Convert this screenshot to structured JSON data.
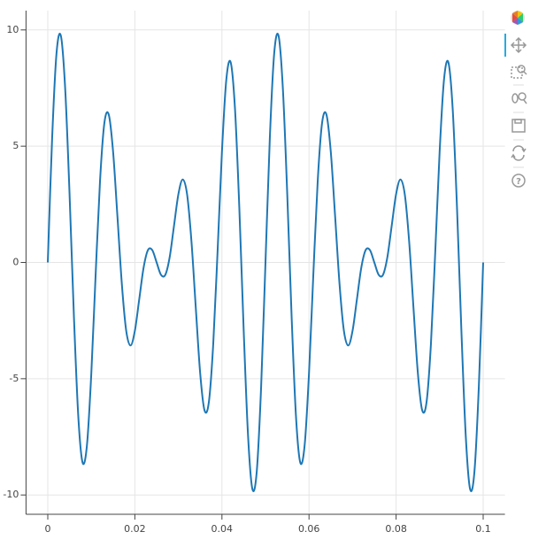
{
  "chart_data": {
    "type": "line",
    "x": [
      0,
      0.001,
      0.002,
      0.003,
      0.004,
      0.005,
      0.006,
      0.007,
      0.008,
      0.009,
      0.01,
      0.011,
      0.012,
      0.013,
      0.014,
      0.015,
      0.016,
      0.017,
      0.018,
      0.019,
      0.02,
      0.021,
      0.022,
      0.023,
      0.024,
      0.025,
      0.026,
      0.027,
      0.028,
      0.029,
      0.03,
      0.031,
      0.032,
      0.033,
      0.034,
      0.035,
      0.036,
      0.037,
      0.038,
      0.039,
      0.04,
      0.041,
      0.042,
      0.043,
      0.044,
      0.045,
      0.046,
      0.047,
      0.048,
      0.049,
      0.05,
      0.051,
      0.052,
      0.053,
      0.054,
      0.055,
      0.056,
      0.057,
      0.058,
      0.059,
      0.06,
      0.061,
      0.062,
      0.063,
      0.064,
      0.065,
      0.066,
      0.067,
      0.068,
      0.069,
      0.07,
      0.071,
      0.072,
      0.073,
      0.074,
      0.075,
      0.076,
      0.077,
      0.078,
      0.079,
      0.08,
      0.081,
      0.082,
      0.083,
      0.084,
      0.085,
      0.086,
      0.087,
      0.088,
      0.089,
      0.09,
      0.091,
      0.092,
      0.093,
      0.094,
      0.095,
      0.096,
      0.097,
      0.098,
      0.099,
      0.1
    ],
    "series": [
      {
        "color": "#1f77b4",
        "values": [
          0,
          5.35,
          8.98,
          9.75,
          7.46,
          2.94,
          -2.31,
          -6.6,
          -8.61,
          -7.85,
          -4.76,
          -0.48,
          3.51,
          6.0,
          6.36,
          4.76,
          1.97,
          -0.9,
          -2.92,
          -3.57,
          -2.94,
          -1.59,
          -0.23,
          0.53,
          0.53,
          0,
          -0.53,
          -0.53,
          0.23,
          1.59,
          2.94,
          3.57,
          2.92,
          0.9,
          -1.97,
          -4.76,
          -6.36,
          -6.0,
          -3.51,
          0.48,
          4.76,
          7.85,
          8.61,
          6.6,
          2.31,
          -2.94,
          -7.46,
          -9.75,
          -8.98,
          -5.35,
          0,
          5.35,
          8.98,
          9.75,
          7.46,
          2.94,
          -2.31,
          -6.6,
          -8.61,
          -7.85,
          -4.76,
          -0.48,
          3.51,
          6.0,
          6.36,
          4.76,
          1.97,
          -0.9,
          -2.92,
          -3.57,
          -2.94,
          -1.59,
          -0.23,
          0.53,
          0.53,
          0,
          -0.53,
          -0.53,
          0.23,
          1.59,
          2.94,
          3.57,
          2.92,
          0.9,
          -1.97,
          -4.76,
          -6.36,
          -6.0,
          -3.51,
          0.48,
          4.76,
          7.85,
          8.61,
          6.6,
          2.31,
          -2.94,
          -7.46,
          -9.75,
          -8.98,
          -5.35,
          0
        ]
      }
    ],
    "xlim": [
      -0.005,
      0.105
    ],
    "ylim": [
      -10.83,
      10.83
    ],
    "xticks": [
      0,
      0.02,
      0.04,
      0.06,
      0.08,
      0.1
    ],
    "yticks": [
      -10,
      -5,
      0,
      5,
      10
    ],
    "grid": true
  }
}
